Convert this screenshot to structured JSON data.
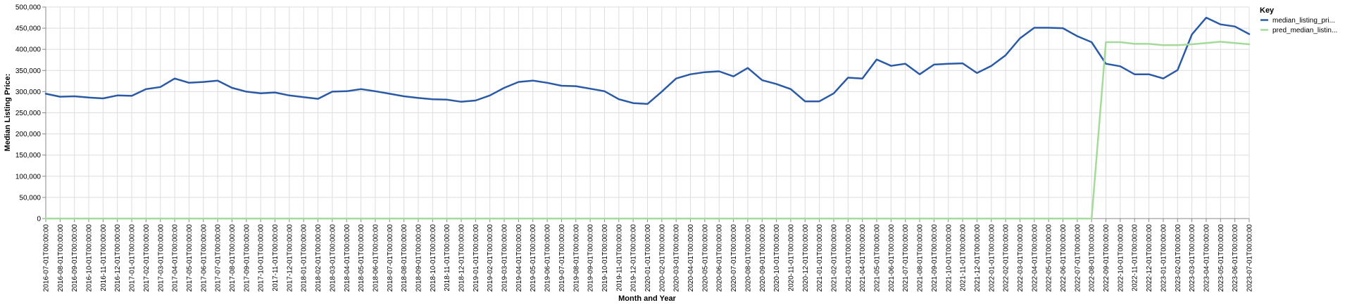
{
  "chart_data": {
    "type": "line",
    "xlabel": "Month and Year",
    "ylabel": "Median Listing Price:",
    "ylim": [
      0,
      500000
    ],
    "yticks": [
      "0",
      "50,000",
      "100,000",
      "150,000",
      "200,000",
      "250,000",
      "300,000",
      "350,000",
      "400,000",
      "450,000",
      "500,000"
    ],
    "grid": true,
    "legend": {
      "title": "Key",
      "position": "right"
    },
    "x": [
      "2016-07-01T00:00:00",
      "2016-08-01T00:00:00",
      "2016-09-01T00:00:00",
      "2016-10-01T00:00:00",
      "2016-11-01T00:00:00",
      "2016-12-01T00:00:00",
      "2017-01-01T00:00:00",
      "2017-02-01T00:00:00",
      "2017-03-01T00:00:00",
      "2017-04-01T00:00:00",
      "2017-05-01T00:00:00",
      "2017-06-01T00:00:00",
      "2017-07-01T00:00:00",
      "2017-08-01T00:00:00",
      "2017-09-01T00:00:00",
      "2017-10-01T00:00:00",
      "2017-11-01T00:00:00",
      "2017-12-01T00:00:00",
      "2018-01-01T00:00:00",
      "2018-02-01T00:00:00",
      "2018-03-01T00:00:00",
      "2018-04-01T00:00:00",
      "2018-05-01T00:00:00",
      "2018-06-01T00:00:00",
      "2018-07-01T00:00:00",
      "2018-08-01T00:00:00",
      "2018-09-01T00:00:00",
      "2018-10-01T00:00:00",
      "2018-11-01T00:00:00",
      "2018-12-01T00:00:00",
      "2019-01-01T00:00:00",
      "2019-02-01T00:00:00",
      "2019-03-01T00:00:00",
      "2019-04-01T00:00:00",
      "2019-05-01T00:00:00",
      "2019-06-01T00:00:00",
      "2019-07-01T00:00:00",
      "2019-08-01T00:00:00",
      "2019-09-01T00:00:00",
      "2019-10-01T00:00:00",
      "2019-11-01T00:00:00",
      "2019-12-01T00:00:00",
      "2020-01-01T00:00:00",
      "2020-02-01T00:00:00",
      "2020-03-01T00:00:00",
      "2020-04-01T00:00:00",
      "2020-05-01T00:00:00",
      "2020-06-01T00:00:00",
      "2020-07-01T00:00:00",
      "2020-08-01T00:00:00",
      "2020-09-01T00:00:00",
      "2020-10-01T00:00:00",
      "2020-11-01T00:00:00",
      "2020-12-01T00:00:00",
      "2021-01-01T00:00:00",
      "2021-02-01T00:00:00",
      "2021-03-01T00:00:00",
      "2021-04-01T00:00:00",
      "2021-05-01T00:00:00",
      "2021-06-01T00:00:00",
      "2021-07-01T00:00:00",
      "2021-08-01T00:00:00",
      "2021-09-01T00:00:00",
      "2021-10-01T00:00:00",
      "2021-11-01T00:00:00",
      "2021-12-01T00:00:00",
      "2022-01-01T00:00:00",
      "2022-02-01T00:00:00",
      "2022-03-01T00:00:00",
      "2022-04-01T00:00:00",
      "2022-05-01T00:00:00",
      "2022-06-01T00:00:00",
      "2022-07-01T00:00:00",
      "2022-08-01T00:00:00",
      "2022-09-01T00:00:00",
      "2022-10-01T00:00:00",
      "2022-11-01T00:00:00",
      "2022-12-01T00:00:00",
      "2023-01-01T00:00:00",
      "2023-02-01T00:00:00",
      "2023-03-01T00:00:00",
      "2023-04-01T00:00:00",
      "2023-05-01T00:00:00",
      "2023-06-01T00:00:00",
      "2023-07-01T00:00:00"
    ],
    "series": [
      {
        "name": "median_listing_pri...",
        "color": "#2a5aa5",
        "values": [
          295000,
          288000,
          289000,
          286000,
          284000,
          291000,
          290000,
          306000,
          311000,
          331000,
          321000,
          323000,
          326000,
          309000,
          300000,
          296000,
          298000,
          291000,
          287000,
          283000,
          300000,
          301000,
          306000,
          301000,
          295000,
          289000,
          285000,
          282000,
          281000,
          276000,
          279000,
          291000,
          309000,
          323000,
          326000,
          321000,
          314000,
          313000,
          307000,
          301000,
          282000,
          273000,
          271000,
          300000,
          331000,
          341000,
          346000,
          348000,
          336000,
          356000,
          327000,
          318000,
          306000,
          277000,
          277000,
          296000,
          333000,
          331000,
          376000,
          361000,
          366000,
          341000,
          364000,
          366000,
          367000,
          344000,
          361000,
          386000,
          426000,
          451000,
          451000,
          450000,
          431000,
          417000,
          366000,
          360000,
          341000,
          341000,
          331000,
          351000,
          435000,
          475000,
          459000,
          454000,
          436000
        ]
      },
      {
        "name": "pred_median_listin...",
        "color": "#a4da9a",
        "values": [
          0,
          0,
          0,
          0,
          0,
          0,
          0,
          0,
          0,
          0,
          0,
          0,
          0,
          0,
          0,
          0,
          0,
          0,
          0,
          0,
          0,
          0,
          0,
          0,
          0,
          0,
          0,
          0,
          0,
          0,
          0,
          0,
          0,
          0,
          0,
          0,
          0,
          0,
          0,
          0,
          0,
          0,
          0,
          0,
          0,
          0,
          0,
          0,
          0,
          0,
          0,
          0,
          0,
          0,
          0,
          0,
          0,
          0,
          0,
          0,
          0,
          0,
          0,
          0,
          0,
          0,
          0,
          0,
          0,
          0,
          0,
          0,
          0,
          0,
          417000,
          417000,
          413000,
          413000,
          410000,
          410000,
          412000,
          415000,
          418000,
          415000,
          412000
        ]
      }
    ]
  }
}
